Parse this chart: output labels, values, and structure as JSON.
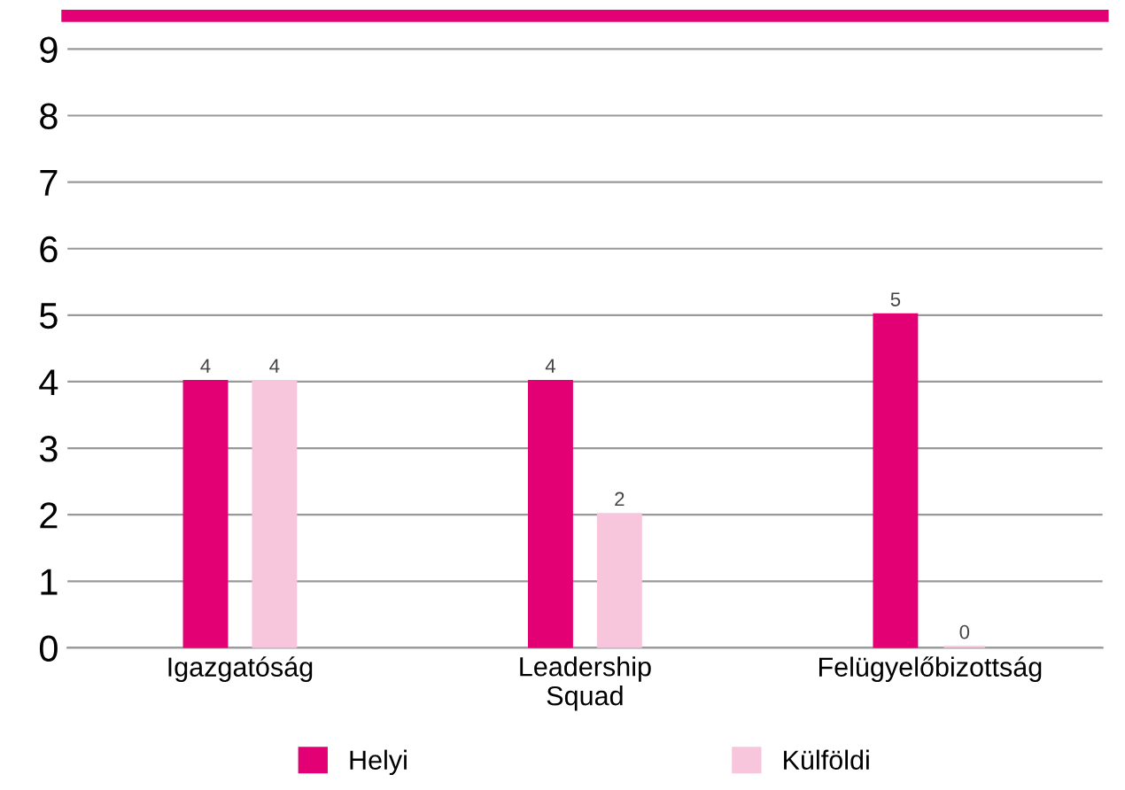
{
  "chart_data": {
    "type": "bar",
    "categories": [
      "Igazgatóság",
      "Leadership\nSquad",
      "Felügyelőbizottság"
    ],
    "series": [
      {
        "name": "Helyi",
        "color": "#e20074",
        "values": [
          4,
          4,
          5
        ]
      },
      {
        "name": "Külföldi",
        "color": "#f7c6dc",
        "values": [
          4,
          2,
          0
        ]
      }
    ],
    "ylim": [
      0,
      9.5
    ],
    "yticks": [
      0,
      1,
      2,
      3,
      4,
      5,
      6,
      7,
      8,
      9
    ],
    "grid": "y",
    "legend": "bottom",
    "data_labels": true
  }
}
